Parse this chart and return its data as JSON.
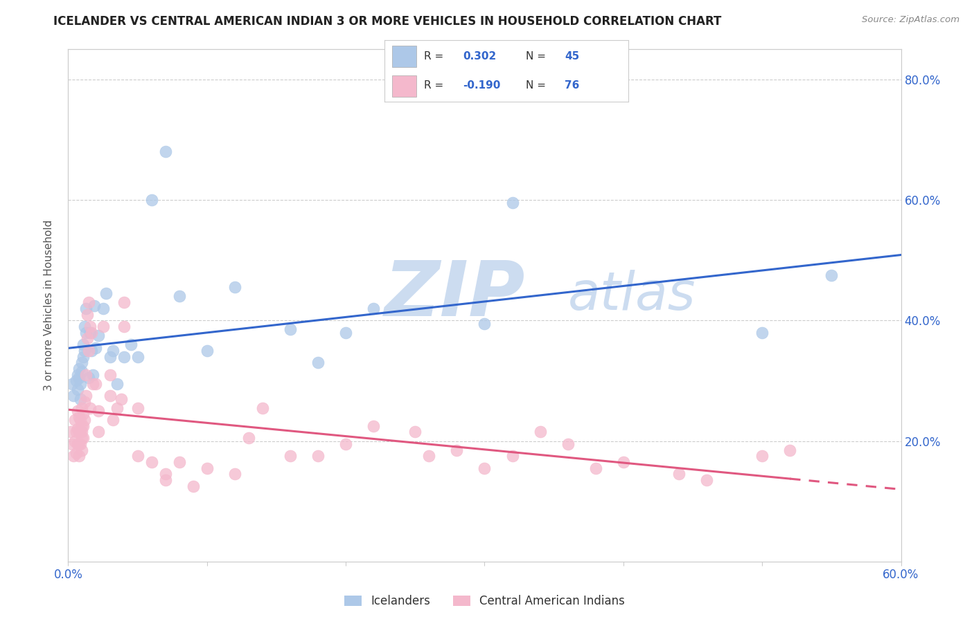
{
  "title": "ICELANDER VS CENTRAL AMERICAN INDIAN 3 OR MORE VEHICLES IN HOUSEHOLD CORRELATION CHART",
  "source": "Source: ZipAtlas.com",
  "ylabel": "3 or more Vehicles in Household",
  "xlim": [
    0.0,
    0.6
  ],
  "ylim": [
    0.0,
    0.85
  ],
  "blue_R": 0.302,
  "blue_N": 45,
  "pink_R": -0.19,
  "pink_N": 76,
  "blue_color": "#adc8e8",
  "blue_line_color": "#3366cc",
  "pink_color": "#f4b8cc",
  "pink_line_color": "#e05880",
  "watermark_zip_color": "#ccdcf0",
  "watermark_atlas_color": "#ccdcf0",
  "legend_label_blue": "Icelanders",
  "legend_label_pink": "Central American Indians",
  "text_color": "#3366cc",
  "blue_x": [
    0.003,
    0.004,
    0.006,
    0.007,
    0.007,
    0.008,
    0.008,
    0.009,
    0.009,
    0.01,
    0.01,
    0.011,
    0.011,
    0.012,
    0.012,
    0.013,
    0.013,
    0.015,
    0.016,
    0.017,
    0.018,
    0.019,
    0.02,
    0.022,
    0.025,
    0.027,
    0.03,
    0.032,
    0.035,
    0.04,
    0.045,
    0.05,
    0.06,
    0.07,
    0.08,
    0.1,
    0.12,
    0.16,
    0.18,
    0.2,
    0.22,
    0.3,
    0.32,
    0.5,
    0.55
  ],
  "blue_y": [
    0.295,
    0.275,
    0.3,
    0.285,
    0.31,
    0.305,
    0.32,
    0.27,
    0.295,
    0.315,
    0.33,
    0.34,
    0.36,
    0.35,
    0.39,
    0.38,
    0.42,
    0.305,
    0.38,
    0.35,
    0.31,
    0.425,
    0.355,
    0.375,
    0.42,
    0.445,
    0.34,
    0.35,
    0.295,
    0.34,
    0.36,
    0.34,
    0.6,
    0.68,
    0.44,
    0.35,
    0.455,
    0.385,
    0.33,
    0.38,
    0.42,
    0.395,
    0.595,
    0.38,
    0.475
  ],
  "pink_x": [
    0.002,
    0.003,
    0.004,
    0.005,
    0.005,
    0.006,
    0.006,
    0.007,
    0.007,
    0.007,
    0.008,
    0.008,
    0.008,
    0.008,
    0.009,
    0.009,
    0.009,
    0.01,
    0.01,
    0.01,
    0.01,
    0.01,
    0.011,
    0.011,
    0.011,
    0.012,
    0.012,
    0.013,
    0.013,
    0.014,
    0.014,
    0.015,
    0.015,
    0.016,
    0.016,
    0.017,
    0.018,
    0.02,
    0.022,
    0.022,
    0.025,
    0.03,
    0.03,
    0.032,
    0.035,
    0.038,
    0.04,
    0.04,
    0.05,
    0.05,
    0.06,
    0.07,
    0.07,
    0.08,
    0.09,
    0.1,
    0.12,
    0.13,
    0.14,
    0.16,
    0.18,
    0.2,
    0.22,
    0.25,
    0.26,
    0.28,
    0.3,
    0.32,
    0.34,
    0.36,
    0.38,
    0.4,
    0.44,
    0.46,
    0.5,
    0.52
  ],
  "pink_y": [
    0.215,
    0.195,
    0.175,
    0.2,
    0.235,
    0.215,
    0.18,
    0.25,
    0.22,
    0.195,
    0.24,
    0.215,
    0.195,
    0.175,
    0.235,
    0.215,
    0.195,
    0.255,
    0.225,
    0.215,
    0.205,
    0.185,
    0.245,
    0.225,
    0.205,
    0.265,
    0.235,
    0.31,
    0.275,
    0.37,
    0.41,
    0.43,
    0.35,
    0.39,
    0.255,
    0.38,
    0.295,
    0.295,
    0.25,
    0.215,
    0.39,
    0.31,
    0.275,
    0.235,
    0.255,
    0.27,
    0.39,
    0.43,
    0.255,
    0.175,
    0.165,
    0.145,
    0.135,
    0.165,
    0.125,
    0.155,
    0.145,
    0.205,
    0.255,
    0.175,
    0.175,
    0.195,
    0.225,
    0.215,
    0.175,
    0.185,
    0.155,
    0.175,
    0.215,
    0.195,
    0.155,
    0.165,
    0.145,
    0.135,
    0.175,
    0.185
  ]
}
